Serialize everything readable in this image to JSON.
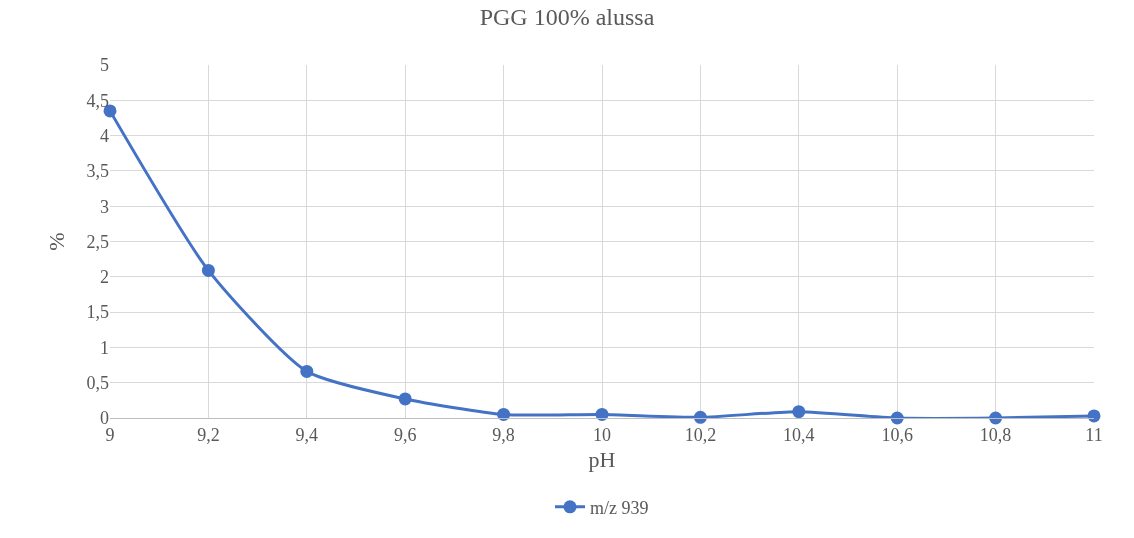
{
  "chart_data": {
    "type": "line",
    "title": "PGG 100% alussa",
    "xlabel": "pH",
    "ylabel": "%",
    "x": [
      9,
      9.2,
      9.4,
      9.6,
      9.8,
      10,
      10.2,
      10.4,
      10.6,
      10.8,
      11
    ],
    "series": [
      {
        "name": "m/z 939",
        "color": "#4472c4",
        "values": [
          4.35,
          2.09,
          0.66,
          0.27,
          0.05,
          0.05,
          0.01,
          0.09,
          0,
          0,
          0.03
        ]
      }
    ],
    "xlim": [
      9,
      11
    ],
    "xticks": [
      9,
      {
        "value": 9.2,
        "label": "9,2"
      },
      {
        "value": 9.4,
        "label": "9,4"
      },
      {
        "value": 9.6,
        "label": "9,6"
      },
      {
        "value": 9.8,
        "label": "9,8"
      },
      10,
      {
        "value": 10.2,
        "label": "10,2"
      },
      {
        "value": 10.4,
        "label": "10,4"
      },
      {
        "value": 10.6,
        "label": "10,6"
      },
      {
        "value": 10.8,
        "label": "10,8"
      },
      11
    ],
    "ylim": [
      0,
      5
    ],
    "yticks": [
      0,
      {
        "value": 0.5,
        "label": "0,5"
      },
      1,
      {
        "value": 1.5,
        "label": "1,5"
      },
      2,
      {
        "value": 2.5,
        "label": "2,5"
      },
      3,
      {
        "value": 3.5,
        "label": "3,5"
      },
      4,
      {
        "value": 4.5,
        "label": "4,5"
      },
      5
    ],
    "grid": true,
    "legend": "bottom",
    "marker": "circle",
    "line_style": "solid"
  }
}
